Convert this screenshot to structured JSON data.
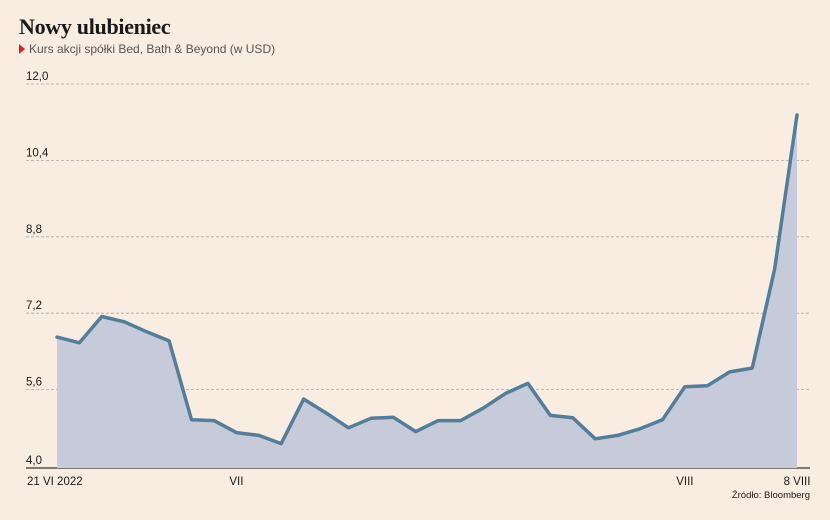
{
  "title": "Nowy ulubieniec",
  "subtitle": "Kurs akcji spółki Bed, Bath & Beyond (w USD)",
  "source": "Źródło: Bloomberg",
  "colors": {
    "line": "#527e9c",
    "area": "#c7cad8",
    "grid": "#a8a8a8",
    "marker": "#e02020",
    "background": "#f9ece0"
  },
  "chart_data": {
    "type": "area",
    "title": "Nowy ulubieniec",
    "subtitle": "Kurs akcji spółki Bed, Bath & Beyond (w USD)",
    "ylim": [
      4.0,
      12.0
    ],
    "y_ticks": [
      "4,0",
      "5,6",
      "7,2",
      "8,8",
      "10,4",
      "12,0"
    ],
    "y_tick_values": [
      4.0,
      5.6,
      7.2,
      8.8,
      10.4,
      12.0
    ],
    "x_tick_labels": [
      "21 VI 2022",
      "VII",
      "VIII",
      "8 VIII"
    ],
    "x_tick_index": [
      0,
      8,
      28,
      33
    ],
    "grid": "horizontal dashed",
    "series": [
      {
        "values": [
          6.7,
          6.58,
          7.13,
          7.02,
          6.81,
          6.62,
          4.97,
          4.95,
          4.7,
          4.64,
          4.47,
          5.4,
          5.11,
          4.8,
          5.0,
          5.02,
          4.72,
          4.95,
          4.95,
          5.21,
          5.52,
          5.73,
          5.06,
          5.01,
          4.57,
          4.64,
          4.78,
          4.97,
          5.66,
          5.68,
          5.97,
          6.05,
          8.12,
          11.35
        ]
      }
    ]
  }
}
